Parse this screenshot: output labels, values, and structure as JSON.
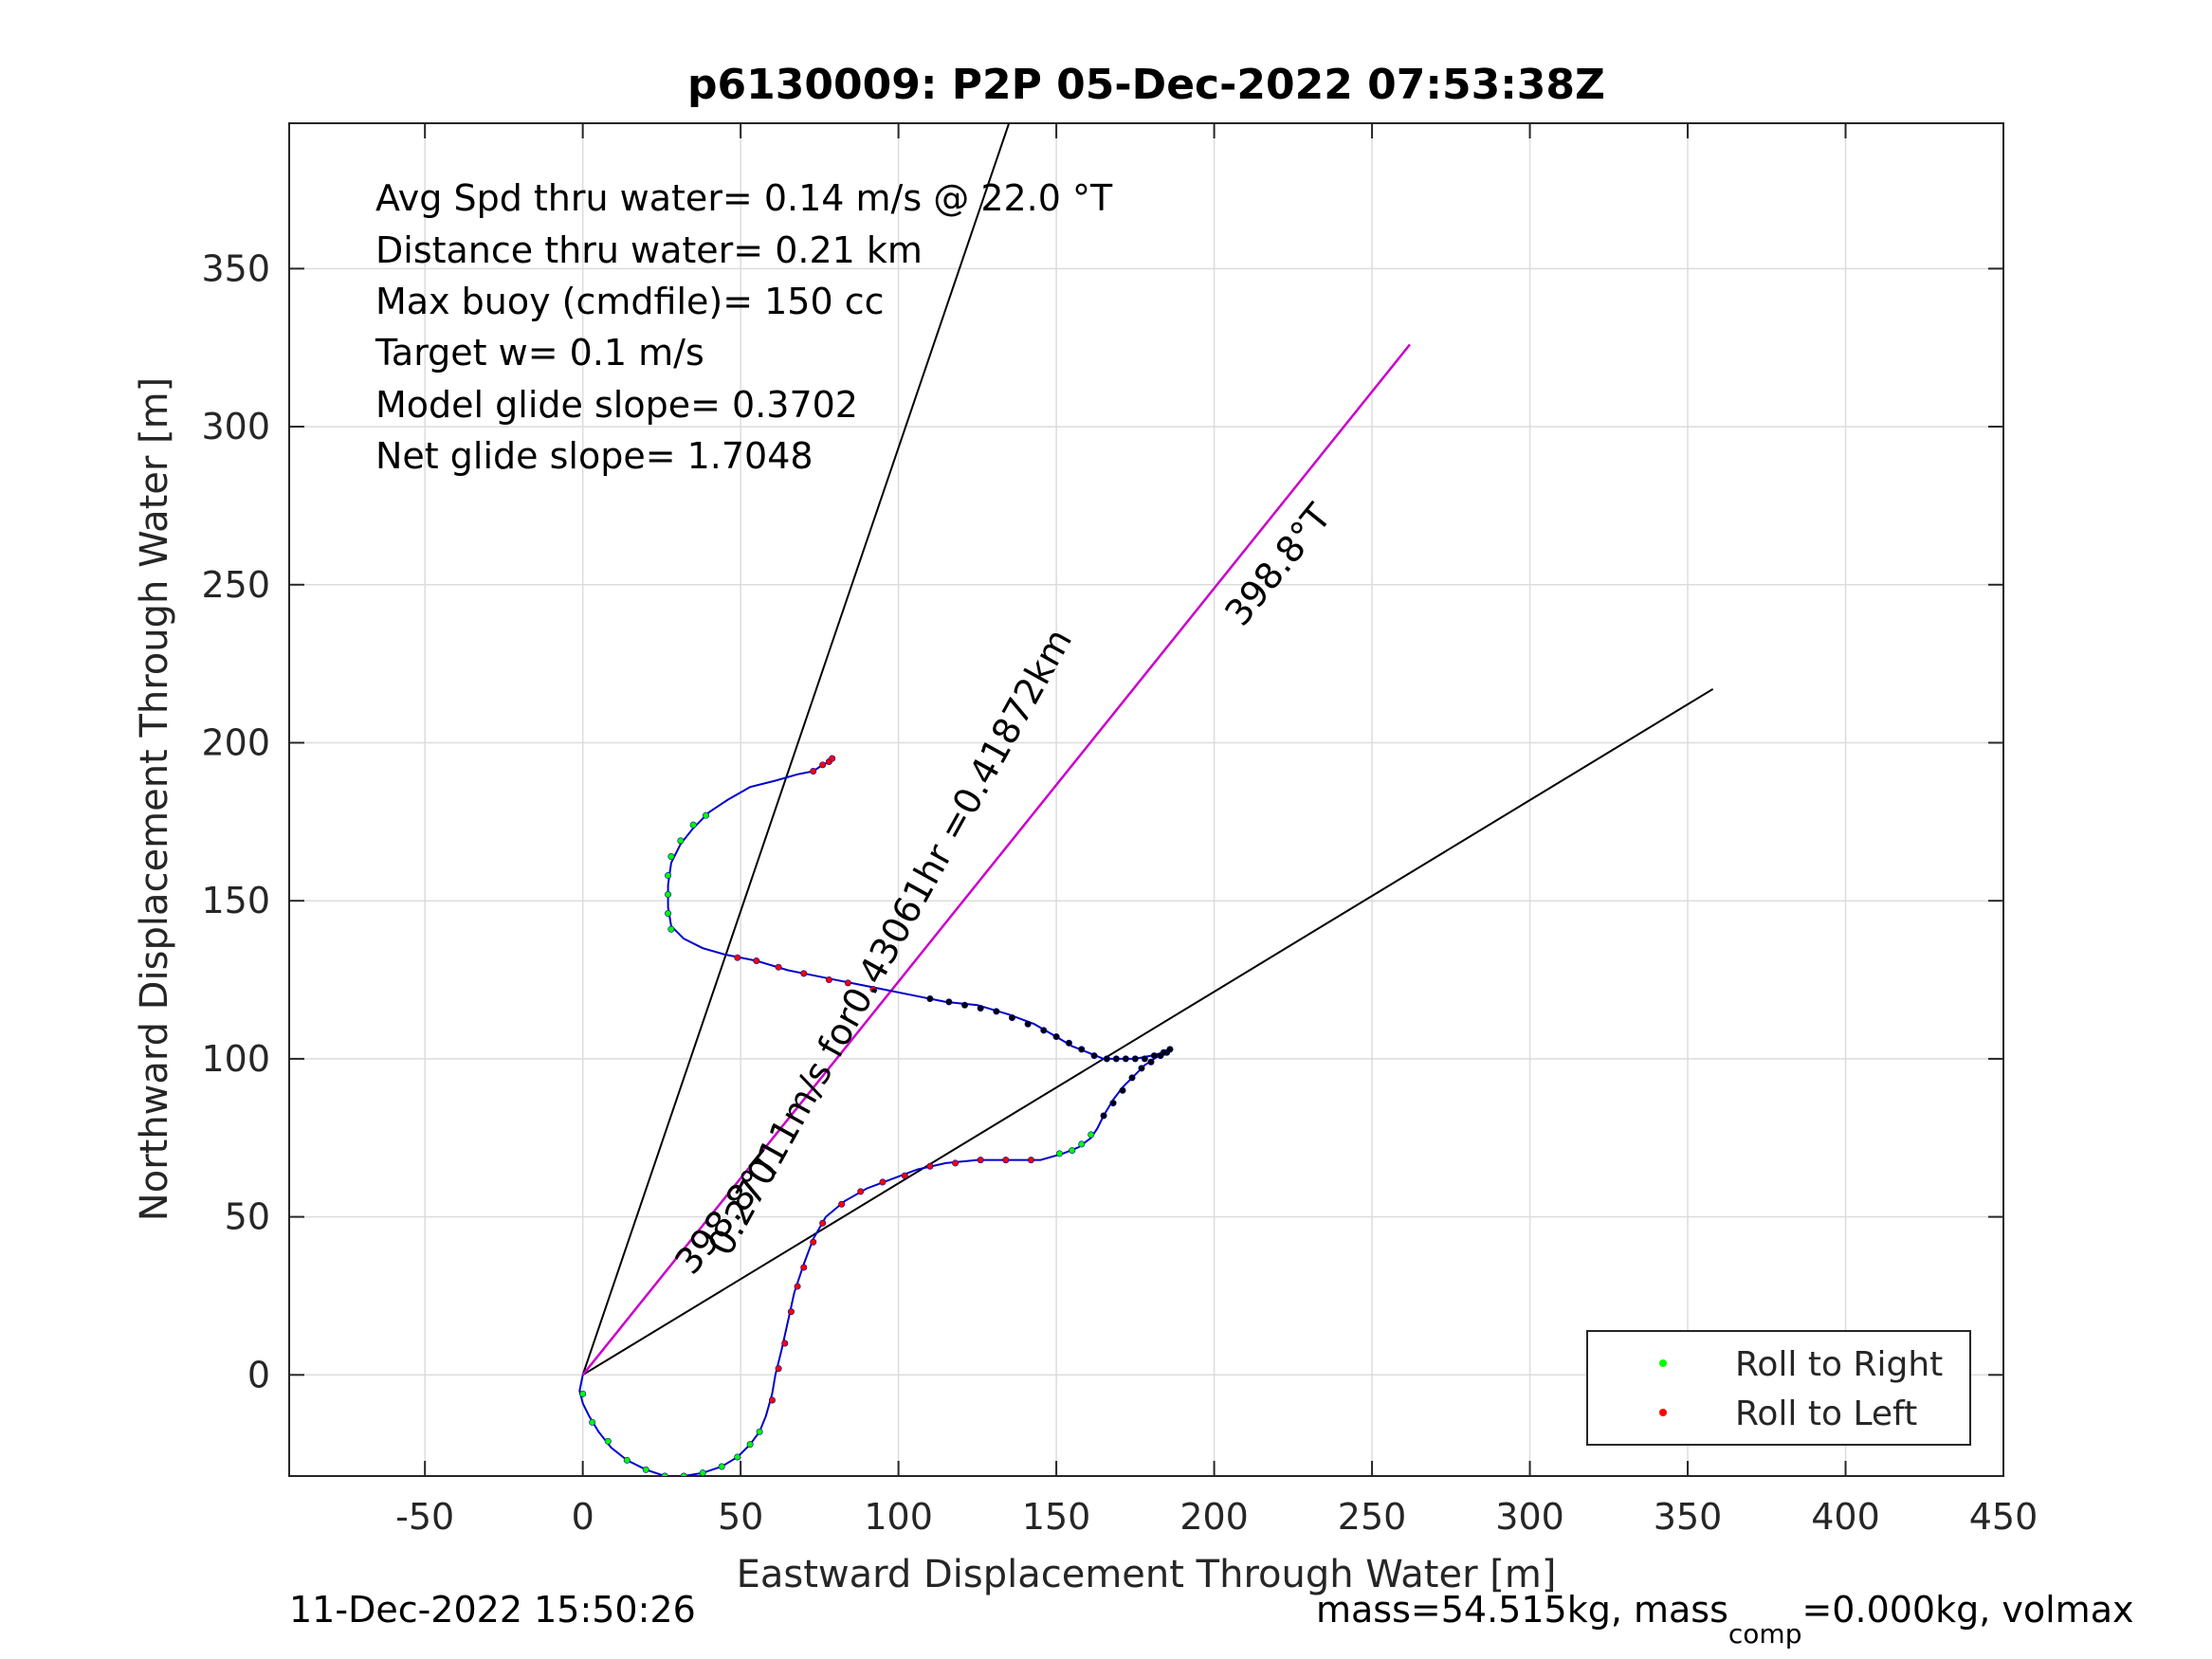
{
  "chart_data": {
    "type": "scatter",
    "title": "p6130009: P2P 05-Dec-2022 07:53:38Z",
    "xlabel": "Eastward Displacement Through Water [m]",
    "ylabel": "Northward Displacement Through Water [m]",
    "xlim": [
      -93,
      450
    ],
    "ylim": [
      -32,
      396
    ],
    "xticks": [
      -50,
      0,
      50,
      100,
      150,
      200,
      250,
      300,
      350,
      400,
      450
    ],
    "yticks": [
      0,
      50,
      100,
      150,
      200,
      250,
      300,
      350
    ],
    "xtick_labels": [
      "-50",
      "0",
      "50",
      "100",
      "150",
      "200",
      "250",
      "300",
      "350",
      "400",
      "450"
    ],
    "ytick_labels": [
      "0",
      "50",
      "100",
      "150",
      "200",
      "250",
      "300",
      "350"
    ],
    "grid": true,
    "legend_position": "bottom-right",
    "annotations": [
      "Avg Spd thru water=  0.14 m/s @  22.0 °T",
      "Distance thru water=  0.21 km",
      "Max buoy (cmdfile)= 150 cc",
      "Target w= 0.1 m/s",
      "Model glide slope= 0.3702",
      "Net glide slope= 1.7048"
    ],
    "rotated_labels": {
      "heading_upper": "398.8°T",
      "heading_lower": "398.8°T",
      "speed_distance": "0.27011m/s for0.43061hr =0.41872km"
    },
    "footer": {
      "timestamp": "11-Dec-2022 15:50:26",
      "mass_prefix": "mass=54.515kg, mass",
      "mass_subscript": "comp",
      "mass_suffix": "=0.000kg, volmax"
    },
    "series": [
      {
        "name": "Roll to Right",
        "color": "#00ff00",
        "marker": "dot"
      },
      {
        "name": "Roll to Left",
        "color": "#ff0000",
        "marker": "dot"
      }
    ],
    "lines": {
      "cone_left": [
        [
          0,
          0
        ],
        [
          135,
          396
        ]
      ],
      "cone_right": [
        [
          0,
          0
        ],
        [
          358,
          217
        ]
      ],
      "heading": [
        [
          0,
          0
        ],
        [
          262,
          326
        ]
      ]
    },
    "track": [
      [
        0,
        0
      ],
      [
        -1,
        -5
      ],
      [
        0,
        -9
      ],
      [
        2,
        -13
      ],
      [
        5,
        -18
      ],
      [
        9,
        -23
      ],
      [
        14,
        -27
      ],
      [
        20,
        -30
      ],
      [
        26,
        -32
      ],
      [
        32,
        -32
      ],
      [
        38,
        -31
      ],
      [
        44,
        -29
      ],
      [
        49,
        -26
      ],
      [
        53,
        -22
      ],
      [
        56,
        -18
      ],
      [
        58,
        -13
      ],
      [
        60,
        -6
      ],
      [
        61,
        0
      ],
      [
        63,
        8
      ],
      [
        65,
        17
      ],
      [
        67,
        26
      ],
      [
        70,
        35
      ],
      [
        73,
        43
      ],
      [
        77,
        50
      ],
      [
        83,
        55
      ],
      [
        90,
        59
      ],
      [
        98,
        62
      ],
      [
        106,
        65
      ],
      [
        115,
        67
      ],
      [
        125,
        68
      ],
      [
        135,
        68
      ],
      [
        145,
        68
      ],
      [
        152,
        70
      ],
      [
        157,
        72
      ],
      [
        161,
        75
      ],
      [
        163,
        78
      ],
      [
        165,
        82
      ],
      [
        168,
        87
      ],
      [
        171,
        91
      ],
      [
        174,
        94
      ],
      [
        178,
        98
      ],
      [
        181,
        100
      ],
      [
        184,
        102
      ],
      [
        186,
        103
      ],
      [
        184,
        102
      ],
      [
        180,
        101
      ],
      [
        175,
        100
      ],
      [
        170,
        100
      ],
      [
        165,
        100
      ],
      [
        160,
        102
      ],
      [
        155,
        104
      ],
      [
        150,
        107
      ],
      [
        143,
        111
      ],
      [
        135,
        114
      ],
      [
        125,
        117
      ],
      [
        115,
        118
      ],
      [
        105,
        120
      ],
      [
        95,
        122
      ],
      [
        85,
        124
      ],
      [
        75,
        126
      ],
      [
        65,
        128
      ],
      [
        55,
        131
      ],
      [
        45,
        133
      ],
      [
        38,
        135
      ],
      [
        32,
        138
      ],
      [
        28,
        142
      ],
      [
        27,
        148
      ],
      [
        27,
        155
      ],
      [
        28,
        162
      ],
      [
        31,
        168
      ],
      [
        35,
        173
      ],
      [
        40,
        178
      ],
      [
        46,
        182
      ],
      [
        53,
        186
      ],
      [
        61,
        188
      ],
      [
        68,
        190
      ],
      [
        73,
        191
      ],
      [
        76,
        193
      ],
      [
        78,
        194
      ],
      [
        79,
        196
      ]
    ],
    "points_right": [
      [
        0,
        -6
      ],
      [
        3,
        -15
      ],
      [
        8,
        -21
      ],
      [
        14,
        -27
      ],
      [
        20,
        -30
      ],
      [
        26,
        -32
      ],
      [
        32,
        -32
      ],
      [
        38,
        -31
      ],
      [
        44,
        -29
      ],
      [
        49,
        -26
      ],
      [
        53,
        -22
      ],
      [
        56,
        -18
      ],
      [
        151,
        70
      ],
      [
        155,
        71
      ],
      [
        158,
        73
      ],
      [
        161,
        76
      ],
      [
        28,
        141
      ],
      [
        27,
        146
      ],
      [
        27,
        152
      ],
      [
        27,
        158
      ],
      [
        28,
        164
      ],
      [
        31,
        169
      ],
      [
        35,
        174
      ],
      [
        39,
        177
      ]
    ],
    "points_left": [
      [
        60,
        -8
      ],
      [
        62,
        2
      ],
      [
        64,
        10
      ],
      [
        66,
        20
      ],
      [
        68,
        28
      ],
      [
        70,
        34
      ],
      [
        73,
        42
      ],
      [
        76,
        48
      ],
      [
        82,
        54
      ],
      [
        88,
        58
      ],
      [
        95,
        61
      ],
      [
        102,
        63
      ],
      [
        110,
        66
      ],
      [
        118,
        67
      ],
      [
        126,
        68
      ],
      [
        134,
        68
      ],
      [
        142,
        68
      ],
      [
        49,
        132
      ],
      [
        55,
        131
      ],
      [
        62,
        129
      ],
      [
        70,
        127
      ],
      [
        78,
        125
      ],
      [
        84,
        124
      ],
      [
        92,
        122
      ],
      [
        73,
        191
      ],
      [
        76,
        193
      ],
      [
        78,
        194
      ],
      [
        79,
        195
      ]
    ],
    "points_black": [
      [
        165,
        82
      ],
      [
        168,
        86
      ],
      [
        171,
        90
      ],
      [
        174,
        94
      ],
      [
        177,
        97
      ],
      [
        180,
        99
      ],
      [
        183,
        101
      ],
      [
        185,
        102
      ],
      [
        186,
        103
      ],
      [
        184,
        102
      ],
      [
        181,
        101
      ],
      [
        178,
        100
      ],
      [
        175,
        100
      ],
      [
        172,
        100
      ],
      [
        169,
        100
      ],
      [
        166,
        100
      ],
      [
        162,
        101
      ],
      [
        158,
        103
      ],
      [
        154,
        105
      ],
      [
        150,
        107
      ],
      [
        146,
        109
      ],
      [
        141,
        111
      ],
      [
        136,
        113
      ],
      [
        131,
        115
      ],
      [
        126,
        116
      ],
      [
        121,
        117
      ],
      [
        116,
        118
      ],
      [
        110,
        119
      ]
    ]
  }
}
